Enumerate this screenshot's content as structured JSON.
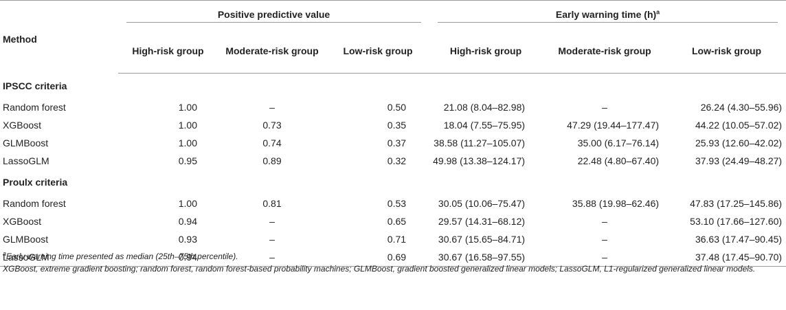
{
  "header": {
    "method": "Method",
    "ppv": "Positive predictive value",
    "ewt": "Early warning time (h)",
    "ewt_sup": "a",
    "sub": [
      "High-risk group",
      "Moderate-risk group",
      "Low-risk group",
      "High-risk group",
      "Moderate-risk group",
      "Low-risk group"
    ]
  },
  "sections": [
    {
      "title": "IPSCC criteria",
      "rows": [
        {
          "method": "Random forest",
          "v": [
            "1.00",
            "–",
            "0.50",
            "21.08 (8.04–82.98)",
            "–",
            "26.24 (4.30–55.96)"
          ]
        },
        {
          "method": "XGBoost",
          "v": [
            "1.00",
            "0.73",
            "0.35",
            "18.04 (7.55–75.95)",
            "47.29 (19.44–177.47)",
            "44.22 (10.05–57.02)"
          ]
        },
        {
          "method": "GLMBoost",
          "v": [
            "1.00",
            "0.74",
            "0.37",
            "38.58 (11.27–105.07)",
            "35.00 (6.17–76.14)",
            "25.93 (12.60–42.02)"
          ]
        },
        {
          "method": "LassoGLM",
          "v": [
            "0.95",
            "0.89",
            "0.32",
            "49.98 (13.38–124.17)",
            "22.48 (4.80–67.40)",
            "37.93 (24.49–48.27)"
          ]
        }
      ]
    },
    {
      "title": "Proulx criteria",
      "rows": [
        {
          "method": "Random forest",
          "v": [
            "1.00",
            "0.81",
            "0.53",
            "30.05 (10.06–75.47)",
            "35.88 (19.98–62.46)",
            "47.83 (17.25–145.86)"
          ]
        },
        {
          "method": "XGBoost",
          "v": [
            "0.94",
            "–",
            "0.65",
            "29.57 (14.31–68.12)",
            "–",
            "53.10 (17.66–127.60)"
          ]
        },
        {
          "method": "GLMBoost",
          "v": [
            "0.93",
            "–",
            "0.71",
            "30.67 (15.65–84.71)",
            "–",
            "36.63 (17.47–90.45)"
          ]
        },
        {
          "method": "LassoGLM",
          "v": [
            "0.94",
            "–",
            "0.69",
            "30.67 (16.58–97.55)",
            "–",
            "37.48 (17.45–90.70)"
          ]
        }
      ]
    }
  ],
  "notes": {
    "footnote_sup": "a",
    "footnote": "Early warning time presented as median (25th–75th percentile).",
    "abbrev": "XGBoost, extreme gradient boosting; random forest, random forest-based probability machines; GLMBoost, gradient boosted generalized linear models; LassoGLM, L1-regularized generalized linear models."
  }
}
